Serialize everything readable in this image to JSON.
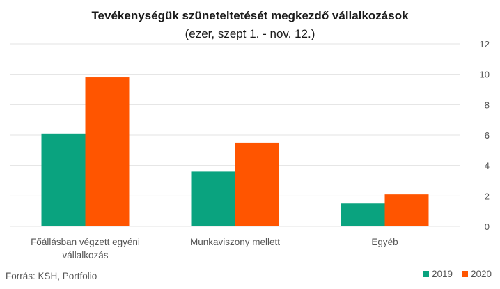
{
  "chart_data": {
    "type": "bar",
    "title": "Tevékenységük szüneteltetését megkezdő vállalkozások",
    "subtitle": "(ezer, szept 1. - nov. 12.)",
    "categories": [
      [
        "Főállásban végzett egyéni",
        "vállalkozás"
      ],
      [
        "Munkaviszony mellett"
      ],
      [
        "Egyéb"
      ]
    ],
    "series": [
      {
        "name": "2019",
        "color": "#0aa37f",
        "values": [
          6.1,
          3.6,
          1.5
        ]
      },
      {
        "name": "2020",
        "color": "#ff5500",
        "values": [
          9.8,
          5.5,
          2.1
        ]
      }
    ],
    "ylim": [
      0,
      12
    ],
    "yticks": [
      0,
      2,
      4,
      6,
      8,
      10,
      12
    ],
    "y_axis_side": "right",
    "grid": true,
    "legend_position": "bottom-right",
    "source": "Forrás: KSH, Portfolio"
  }
}
